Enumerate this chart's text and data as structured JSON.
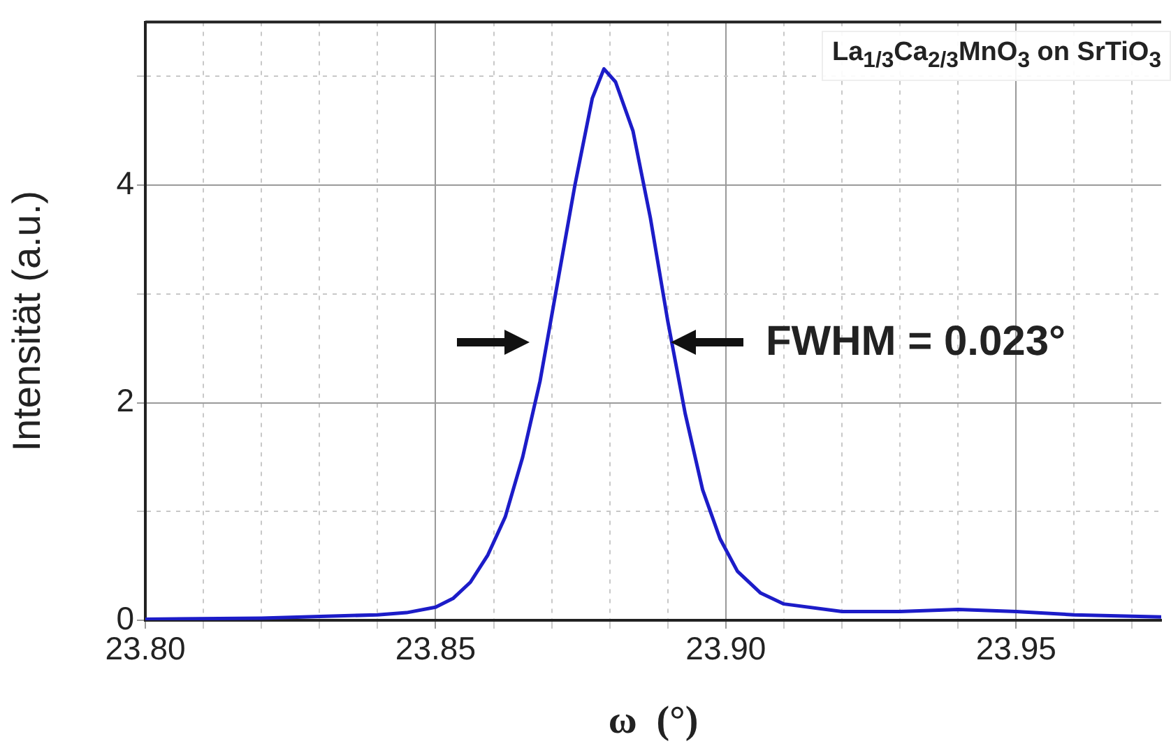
{
  "chart_data": {
    "type": "line",
    "xlabel": "ω  (°)",
    "ylabel": "Intensität (a.u.)",
    "annotations": [
      "La$_{1/3}$Ca$_{2/3}$MnO$_{3}$ on SrTiO$_{3}$",
      {
        "text": "FWHM = 0.023°",
        "x": 23.8905,
        "y": 2.55
      }
    ],
    "x": [
      23.8,
      23.82,
      23.84,
      23.845,
      23.85,
      23.853,
      23.856,
      23.859,
      23.862,
      23.865,
      23.868,
      23.871,
      23.874,
      23.877,
      23.879,
      23.881,
      23.884,
      23.887,
      23.89,
      23.893,
      23.896,
      23.899,
      23.902,
      23.906,
      23.91,
      23.92,
      23.93,
      23.94,
      23.95,
      23.96,
      23.975
    ],
    "series": [
      {
        "color": "#1c1cc8",
        "values": [
          0.01,
          0.02,
          0.05,
          0.07,
          0.12,
          0.2,
          0.35,
          0.6,
          0.95,
          1.5,
          2.2,
          3.1,
          4.0,
          4.8,
          5.07,
          4.95,
          4.5,
          3.7,
          2.75,
          1.9,
          1.2,
          0.75,
          0.45,
          0.25,
          0.15,
          0.08,
          0.08,
          0.1,
          0.08,
          0.05,
          0.03
        ]
      }
    ],
    "xlim": [
      23.8,
      23.975
    ],
    "xticks": [
      {
        "value": 23.8,
        "label": "23.80"
      },
      {
        "value": 23.81,
        "label": null
      },
      {
        "value": 23.82,
        "label": null
      },
      {
        "value": 23.83,
        "label": null
      },
      {
        "value": 23.84,
        "label": null
      },
      {
        "value": 23.85,
        "label": "23.85"
      },
      {
        "value": 23.86,
        "label": null
      },
      {
        "value": 23.87,
        "label": null
      },
      {
        "value": 23.88,
        "label": null
      },
      {
        "value": 23.89,
        "label": null
      },
      {
        "value": 23.9,
        "label": "23.90"
      },
      {
        "value": 23.91,
        "label": null
      },
      {
        "value": 23.92,
        "label": null
      },
      {
        "value": 23.93,
        "label": null
      },
      {
        "value": 23.94,
        "label": null
      },
      {
        "value": 23.95,
        "label": "23.95"
      },
      {
        "value": 23.96,
        "label": null
      },
      {
        "value": 23.97,
        "label": null
      }
    ],
    "ylim": [
      0,
      5.5
    ],
    "yticks": [
      0,
      {
        "value": 1,
        "label": null
      },
      2,
      {
        "value": 3,
        "label": null
      },
      4,
      {
        "value": 5,
        "label": null
      }
    ],
    "grid": true,
    "legend": false,
    "marker": "none",
    "line_style": "solid"
  }
}
